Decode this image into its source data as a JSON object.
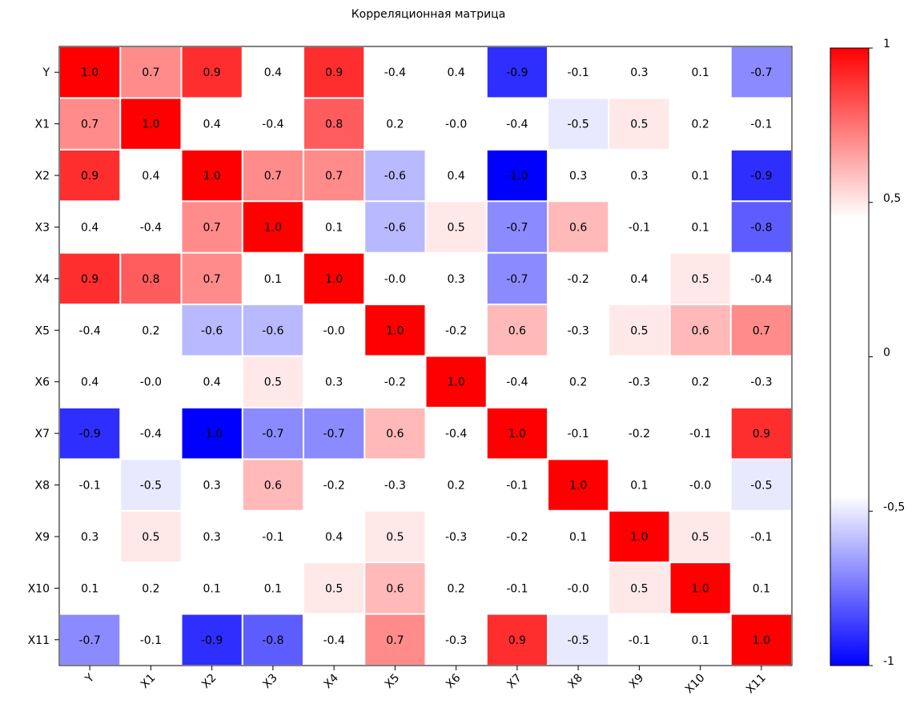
{
  "chart_data": {
    "type": "heatmap",
    "title": "Корреляционная матрица",
    "rows": [
      "Y",
      "X1",
      "X2",
      "X3",
      "X4",
      "X5",
      "X6",
      "X7",
      "X8",
      "X9",
      "X10",
      "X11"
    ],
    "cols": [
      "Y",
      "X1",
      "X2",
      "X3",
      "X4",
      "X5",
      "X6",
      "X7",
      "X8",
      "X9",
      "X10",
      "X11"
    ],
    "values": [
      [
        1.0,
        0.7,
        0.9,
        0.4,
        0.9,
        -0.4,
        0.4,
        -0.9,
        -0.1,
        0.3,
        0.1,
        -0.7
      ],
      [
        0.7,
        1.0,
        0.4,
        -0.4,
        0.8,
        0.2,
        -0.0,
        -0.4,
        -0.5,
        0.5,
        0.2,
        -0.1
      ],
      [
        0.9,
        0.4,
        1.0,
        0.7,
        0.7,
        -0.6,
        0.4,
        -1.0,
        0.3,
        0.3,
        0.1,
        -0.9
      ],
      [
        0.4,
        -0.4,
        0.7,
        1.0,
        0.1,
        -0.6,
        0.5,
        -0.7,
        0.6,
        -0.1,
        0.1,
        -0.8
      ],
      [
        0.9,
        0.8,
        0.7,
        0.1,
        1.0,
        -0.0,
        0.3,
        -0.7,
        -0.2,
        0.4,
        0.5,
        -0.4
      ],
      [
        -0.4,
        0.2,
        -0.6,
        -0.6,
        -0.0,
        1.0,
        -0.2,
        0.6,
        -0.3,
        0.5,
        0.6,
        0.7
      ],
      [
        0.4,
        -0.0,
        0.4,
        0.5,
        0.3,
        -0.2,
        1.0,
        -0.4,
        0.2,
        -0.3,
        0.2,
        -0.3
      ],
      [
        -0.9,
        -0.4,
        -1.0,
        -0.7,
        -0.7,
        0.6,
        -0.4,
        1.0,
        -0.1,
        -0.2,
        -0.1,
        0.9
      ],
      [
        -0.1,
        -0.5,
        0.3,
        0.6,
        -0.2,
        -0.3,
        0.2,
        -0.1,
        1.0,
        0.1,
        -0.0,
        -0.5
      ],
      [
        0.3,
        0.5,
        0.3,
        -0.1,
        0.4,
        0.5,
        -0.3,
        -0.2,
        0.1,
        1.0,
        0.5,
        -0.1
      ],
      [
        0.1,
        0.2,
        0.1,
        0.1,
        0.5,
        0.6,
        0.2,
        -0.1,
        -0.0,
        0.5,
        1.0,
        0.1
      ],
      [
        -0.7,
        -0.1,
        -0.9,
        -0.8,
        -0.4,
        0.7,
        -0.3,
        0.9,
        -0.5,
        -0.1,
        0.1,
        1.0
      ]
    ],
    "colorbar": {
      "range": [
        -1,
        1
      ],
      "ticks": [
        1,
        0.5,
        0,
        -0.5,
        -1
      ],
      "tick_labels": [
        "1",
        "0,5",
        "0",
        "-0,5",
        "-1"
      ],
      "colors": {
        "negative": "#0000ff",
        "neutral": "#ffffff",
        "positive": "#ff0000"
      }
    }
  }
}
